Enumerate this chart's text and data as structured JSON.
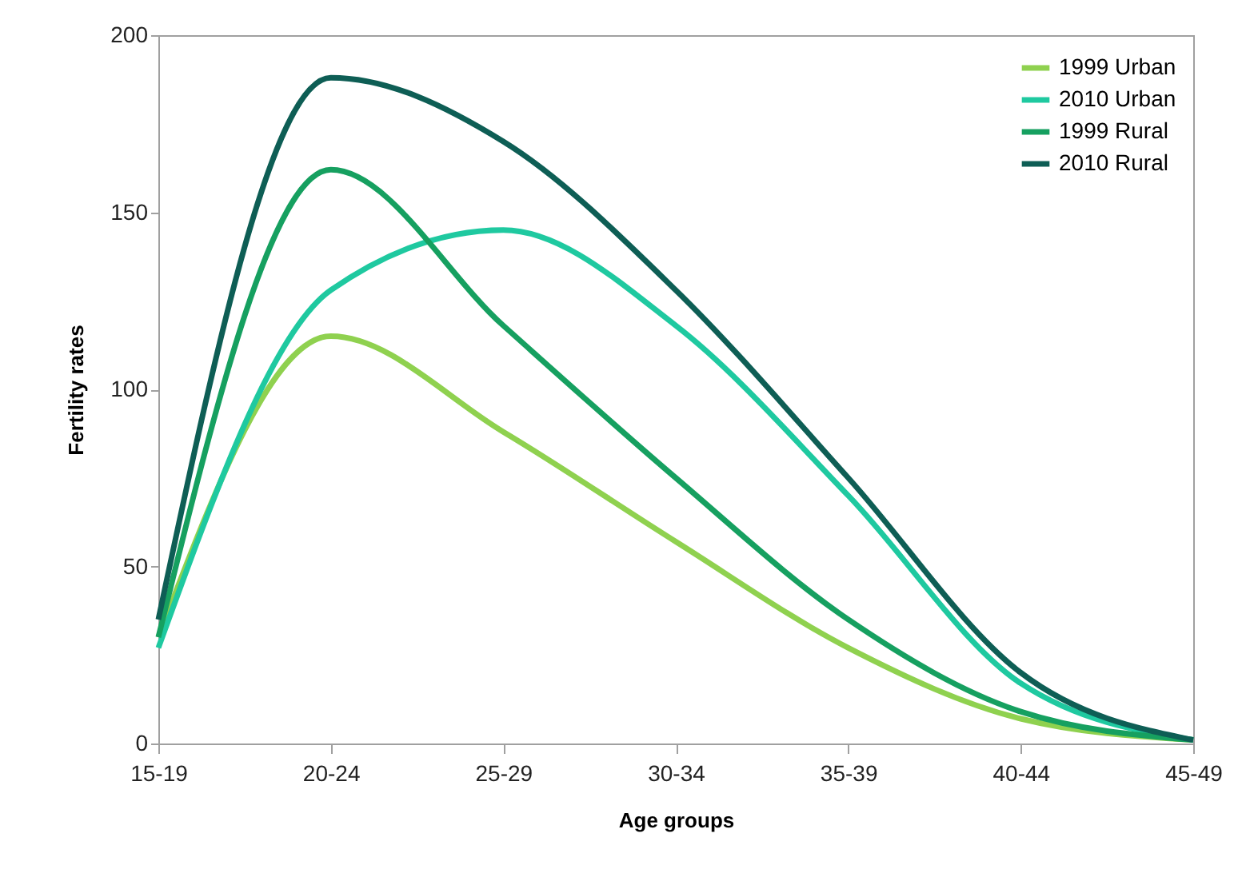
{
  "chart_data": {
    "type": "line",
    "xlabel": "Age groups",
    "ylabel": "Fertility rates",
    "categories": [
      "15-19",
      "20-24",
      "25-29",
      "30-34",
      "35-39",
      "40-44",
      "45-49"
    ],
    "series": [
      {
        "name": "1999 Urban",
        "color": "#8fd14f",
        "values": [
          30,
          115,
          88,
          57,
          27,
          7,
          1
        ]
      },
      {
        "name": "2010 Urban",
        "color": "#1fc9a0",
        "values": [
          27,
          128,
          145,
          118,
          70,
          17,
          1
        ]
      },
      {
        "name": "1999 Rural",
        "color": "#16a060",
        "values": [
          30,
          162,
          118,
          75,
          35,
          9,
          1
        ]
      },
      {
        "name": "2010 Rural",
        "color": "#0e5e55",
        "values": [
          35,
          188,
          170,
          128,
          75,
          20,
          1
        ]
      }
    ],
    "ylim": [
      0,
      200
    ],
    "yticks": [
      0,
      50,
      100,
      150,
      200
    ],
    "grid": false,
    "legend": "top right",
    "marker": "none",
    "line_style": "solid"
  }
}
